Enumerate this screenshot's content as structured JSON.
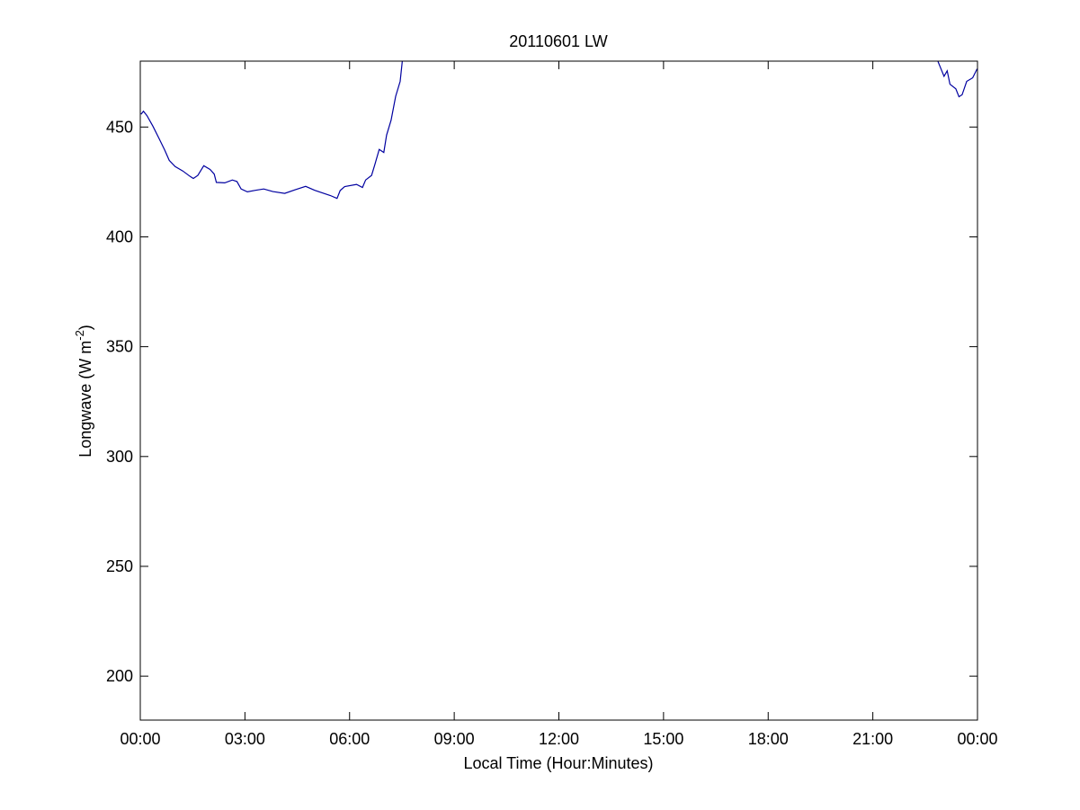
{
  "chart_data": {
    "type": "line",
    "title": "20110601 LW",
    "xlabel": "Local Time (Hour:Minutes)",
    "ylabel_main": "Longwave (W m",
    "ylabel_sup": "-2",
    "ylabel_end": ")",
    "xlim_hours": [
      0,
      24
    ],
    "ylim": [
      180,
      480
    ],
    "x_ticks": [
      {
        "hours": 0,
        "label": "00:00"
      },
      {
        "hours": 3,
        "label": "03:00"
      },
      {
        "hours": 6,
        "label": "06:00"
      },
      {
        "hours": 9,
        "label": "09:00"
      },
      {
        "hours": 12,
        "label": "12:00"
      },
      {
        "hours": 15,
        "label": "15:00"
      },
      {
        "hours": 18,
        "label": "18:00"
      },
      {
        "hours": 21,
        "label": "21:00"
      },
      {
        "hours": 24,
        "label": "00:00"
      }
    ],
    "y_ticks": [
      200,
      250,
      300,
      350,
      400,
      450
    ],
    "grid": false,
    "line_color": "#0000a0",
    "segments": [
      [
        [
          0.02,
          455.8
        ],
        [
          0.09,
          457.2
        ],
        [
          0.19,
          455.2
        ],
        [
          0.36,
          450.4
        ],
        [
          0.53,
          445
        ],
        [
          0.7,
          439.5
        ],
        [
          0.83,
          434.8
        ],
        [
          1.0,
          432
        ],
        [
          1.22,
          430
        ],
        [
          1.43,
          427.5
        ],
        [
          1.52,
          426.6
        ],
        [
          1.65,
          428
        ],
        [
          1.82,
          432.4
        ],
        [
          2.0,
          430.7
        ],
        [
          2.12,
          428.6
        ],
        [
          2.18,
          424.8
        ],
        [
          2.42,
          424.6
        ],
        [
          2.64,
          425.9
        ],
        [
          2.77,
          425.2
        ],
        [
          2.89,
          421.8
        ],
        [
          3.07,
          420.5
        ],
        [
          3.3,
          421.2
        ],
        [
          3.54,
          421.8
        ],
        [
          3.8,
          420.6
        ],
        [
          4.14,
          419.8
        ],
        [
          4.45,
          421.5
        ],
        [
          4.74,
          423
        ],
        [
          5.0,
          421.2
        ],
        [
          5.26,
          419.8
        ],
        [
          5.45,
          418.8
        ],
        [
          5.64,
          417.5
        ],
        [
          5.73,
          421.1
        ],
        [
          5.86,
          422.9
        ],
        [
          6.2,
          423.9
        ],
        [
          6.37,
          422.5
        ],
        [
          6.46,
          425.9
        ],
        [
          6.63,
          428
        ],
        [
          6.72,
          432.7
        ],
        [
          6.85,
          439.8
        ],
        [
          6.98,
          438.4
        ],
        [
          7.06,
          446.3
        ],
        [
          7.19,
          453.1
        ],
        [
          7.32,
          464
        ],
        [
          7.45,
          470.8
        ],
        [
          7.51,
          479.7
        ],
        [
          7.53,
          482
        ]
      ],
      [
        [
          22.85,
          482
        ],
        [
          22.87,
          479.7
        ],
        [
          22.96,
          476.2
        ],
        [
          23.04,
          473.1
        ],
        [
          23.13,
          475.6
        ],
        [
          23.21,
          469.5
        ],
        [
          23.38,
          467.4
        ],
        [
          23.47,
          463.8
        ],
        [
          23.56,
          464.7
        ],
        [
          23.69,
          470.8
        ],
        [
          23.86,
          472.4
        ],
        [
          23.99,
          476.5
        ]
      ]
    ]
  }
}
